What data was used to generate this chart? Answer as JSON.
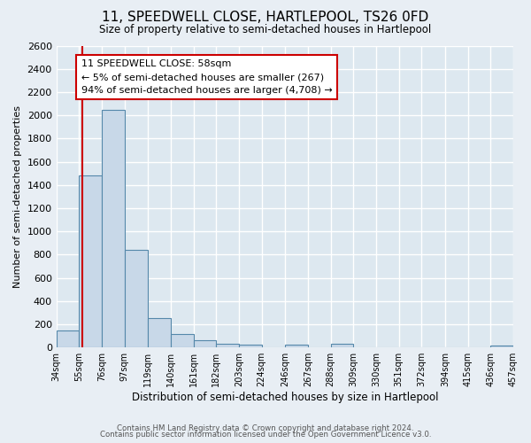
{
  "title": "11, SPEEDWELL CLOSE, HARTLEPOOL, TS26 0FD",
  "subtitle": "Size of property relative to semi-detached houses in Hartlepool",
  "xlabel": "Distribution of semi-detached houses by size in Hartlepool",
  "ylabel": "Number of semi-detached properties",
  "bin_edges": [
    34,
    55,
    76,
    97,
    119,
    140,
    161,
    182,
    203,
    224,
    246,
    267,
    288,
    309,
    330,
    351,
    372,
    394,
    415,
    436,
    457
  ],
  "bar_heights": [
    150,
    1480,
    2050,
    840,
    255,
    115,
    65,
    35,
    25,
    0,
    25,
    0,
    35,
    0,
    0,
    0,
    0,
    0,
    0,
    20
  ],
  "bar_color": "#c8d8e8",
  "bar_edge_color": "#5588aa",
  "property_line_x": 58,
  "property_line_color": "#cc0000",
  "annotation_title": "11 SPEEDWELL CLOSE: 58sqm",
  "annotation_line1": "← 5% of semi-detached houses are smaller (267)",
  "annotation_line2": "94% of semi-detached houses are larger (4,708) →",
  "annotation_box_facecolor": "#ffffff",
  "annotation_box_edgecolor": "#cc0000",
  "ylim": [
    0,
    2600
  ],
  "yticks": [
    0,
    200,
    400,
    600,
    800,
    1000,
    1200,
    1400,
    1600,
    1800,
    2000,
    2200,
    2400,
    2600
  ],
  "background_color": "#e8eef4",
  "plot_bg_color": "#dde8f0",
  "grid_color": "#ffffff",
  "footer_line1": "Contains HM Land Registry data © Crown copyright and database right 2024.",
  "footer_line2": "Contains public sector information licensed under the Open Government Licence v3.0."
}
